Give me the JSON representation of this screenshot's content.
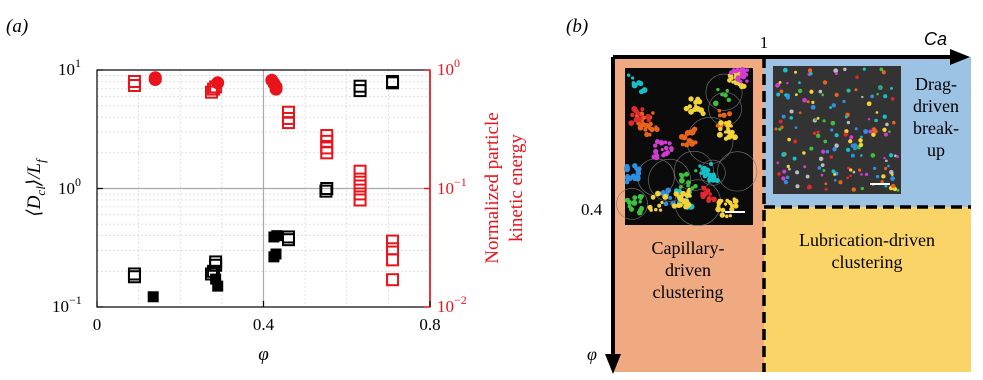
{
  "colors": {
    "black": "#000000",
    "red": "#e8131b",
    "orange_region": "#efaa82",
    "blue_region": "#9cc2e4",
    "yellow_region": "#fbd467",
    "grid_major": "#a9a9a9",
    "grid_minor": "#d9d9d9"
  },
  "chart_data": [
    {
      "type": "scatter",
      "panel_label": "(a)",
      "xlabel": "φ",
      "ylabel_left": "⟨D_cl⟩/L_f",
      "ylabel_right": [
        "Normalized particle",
        "kinetic energy"
      ],
      "xlim": [
        0,
        0.8
      ],
      "ylim_left": [
        0.1,
        10
      ],
      "ylim_right": [
        0.01,
        1
      ],
      "yscale": "log",
      "x_ticks": [
        "0",
        "0.4",
        "0.8"
      ],
      "y_left_ticks": [
        "10",
        "10",
        "10"
      ],
      "y_left_tick_exps": [
        "−1",
        "0",
        "1"
      ],
      "y_right_ticks": [
        "10",
        "10",
        "10"
      ],
      "y_right_tick_exps": [
        "−2",
        "−1",
        "0"
      ],
      "grid": true,
      "series": [
        {
          "axis": "left",
          "marker": "square-filled",
          "color": "#000000",
          "points": [
            [
              0.135,
              0.122
            ],
            [
              0.29,
              0.15
            ],
            [
              0.285,
              0.172
            ],
            [
              0.425,
              0.265
            ],
            [
              0.43,
              0.28
            ],
            [
              0.425,
              0.39
            ],
            [
              0.432,
              0.4
            ]
          ]
        },
        {
          "axis": "left",
          "marker": "square-open",
          "color": "#000000",
          "points": [
            [
              0.09,
              0.18
            ],
            [
              0.09,
              0.19
            ],
            [
              0.275,
              0.19
            ],
            [
              0.28,
              0.2
            ],
            [
              0.285,
              0.225
            ],
            [
              0.285,
              0.24
            ],
            [
              0.46,
              0.37
            ],
            [
              0.46,
              0.39
            ],
            [
              0.55,
              0.95
            ],
            [
              0.552,
              1.0
            ],
            [
              0.632,
              6.7
            ],
            [
              0.632,
              7.3
            ],
            [
              0.71,
              7.8
            ],
            [
              0.71,
              8.0
            ]
          ]
        },
        {
          "axis": "right",
          "marker": "circle-filled",
          "color": "#e8131b",
          "points": [
            [
              0.14,
              0.83
            ],
            [
              0.14,
              0.86
            ],
            [
              0.29,
              0.78
            ],
            [
              0.42,
              0.82
            ],
            [
              0.425,
              0.77
            ],
            [
              0.43,
              0.72
            ],
            [
              0.43,
              0.69
            ]
          ]
        },
        {
          "axis": "right",
          "marker": "square-open",
          "color": "#e8131b",
          "points": [
            [
              0.09,
              0.74
            ],
            [
              0.09,
              0.8
            ],
            [
              0.275,
              0.65
            ],
            [
              0.28,
              0.69
            ],
            [
              0.285,
              0.72
            ],
            [
              0.46,
              0.36
            ],
            [
              0.46,
              0.39
            ],
            [
              0.46,
              0.44
            ],
            [
              0.552,
              0.2
            ],
            [
              0.552,
              0.22
            ],
            [
              0.552,
              0.25
            ],
            [
              0.552,
              0.28
            ],
            [
              0.632,
              0.08
            ],
            [
              0.632,
              0.09
            ],
            [
              0.632,
              0.105
            ],
            [
              0.632,
              0.12
            ],
            [
              0.632,
              0.14
            ],
            [
              0.71,
              0.017
            ],
            [
              0.71,
              0.025
            ],
            [
              0.71,
              0.031
            ],
            [
              0.71,
              0.036
            ]
          ]
        }
      ]
    },
    {
      "type": "diagram",
      "panel_label": "(b)",
      "x_axis_label": "Ca",
      "y_axis_label": "φ",
      "x_marker": "1",
      "y_marker": "0.4",
      "regions": [
        {
          "lines": [
            "Capillary-",
            "driven",
            "clustering"
          ]
        },
        {
          "lines": [
            "Drag-",
            "driven",
            "break-",
            "up"
          ]
        },
        {
          "lines": [
            "Lubrication-driven",
            "clustering"
          ]
        }
      ]
    }
  ]
}
